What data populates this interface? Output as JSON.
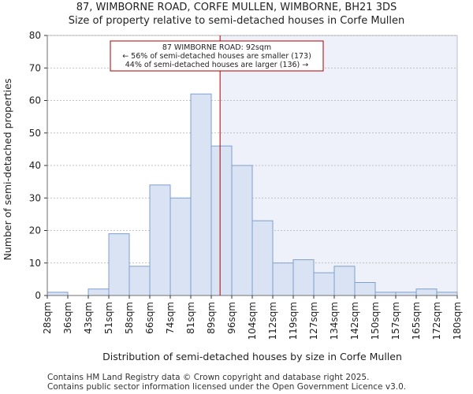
{
  "title_line1": "87, WIMBORNE ROAD, CORFE MULLEN, WIMBORNE, BH21 3DS",
  "title_line2": "Size of property relative to semi-detached houses in Corfe Mullen",
  "footer_line1": "Contains HM Land Registry data © Crown copyright and database right 2025.",
  "footer_line2": "Contains public sector information licensed under the Open Government Licence v3.0.",
  "colors": {
    "bar_fill": "#dae3f3",
    "bar_stroke": "#7f9fce",
    "highlight_bg": "#eef1fa",
    "marker": "#aa0000",
    "grid": "#b0b0b0"
  },
  "chart_data": {
    "type": "bar",
    "xlabel": "Distribution of semi-detached houses by size in Corfe Mullen",
    "ylabel": "Number of semi-detached properties",
    "ylim": [
      0,
      80
    ],
    "yticks": [
      0,
      10,
      20,
      30,
      40,
      50,
      60,
      70,
      80
    ],
    "bin_edges": [
      "28sqm",
      "36sqm",
      "43sqm",
      "51sqm",
      "58sqm",
      "66sqm",
      "74sqm",
      "81sqm",
      "89sqm",
      "96sqm",
      "104sqm",
      "112sqm",
      "119sqm",
      "127sqm",
      "134sqm",
      "142sqm",
      "150sqm",
      "157sqm",
      "165sqm",
      "172sqm",
      "180sqm"
    ],
    "values": [
      1,
      0,
      2,
      19,
      9,
      34,
      30,
      62,
      46,
      40,
      23,
      10,
      11,
      7,
      9,
      4,
      1,
      1,
      2,
      1
    ],
    "marker_value": 92,
    "marker_label": "87 WIMBORNE ROAD: 92sqm",
    "annotation_line2": "← 56% of semi-detached houses are smaller (173)",
    "annotation_line3": "44% of semi-detached houses are larger (136) →",
    "grid": "y",
    "highlight": "bins above marker shaded"
  }
}
